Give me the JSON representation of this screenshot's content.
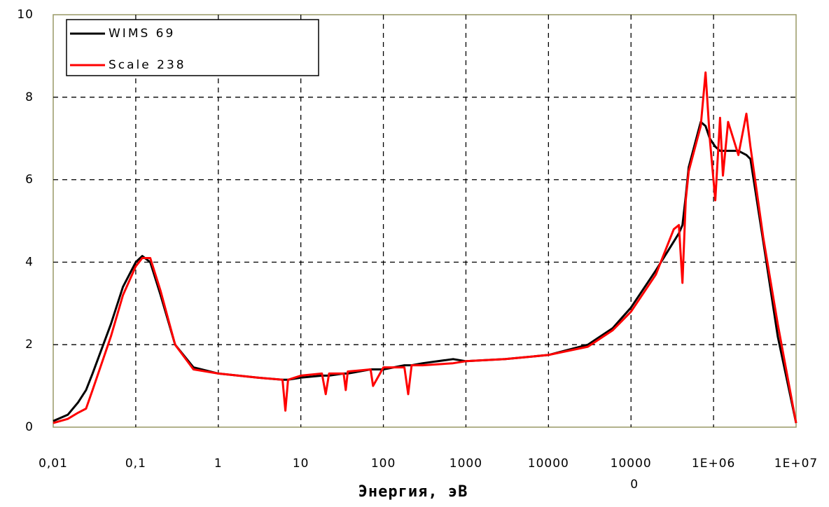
{
  "chart_data": {
    "type": "line",
    "xlabel": "Энергия, эВ",
    "xscale": "log",
    "grid": true,
    "legend": "upper left",
    "xlim": [
      0.01,
      10000000
    ],
    "ylim": [
      0,
      10
    ],
    "xticks": [
      {
        "value": 0.01,
        "label": "0,01"
      },
      {
        "value": 0.1,
        "label": "0,1"
      },
      1,
      10,
      100,
      1000,
      10000,
      {
        "value": 100000,
        "label": "10000\n0"
      },
      {
        "value": 1000000,
        "label": "1E+06"
      },
      {
        "value": 10000000,
        "label": "1E+07"
      }
    ],
    "yticks": [
      0,
      2,
      4,
      6,
      8,
      10
    ],
    "x": [
      0.01,
      0.015,
      0.02,
      0.025,
      0.03,
      0.05,
      0.07,
      0.1,
      0.12,
      0.15,
      0.2,
      0.3,
      0.5,
      1,
      3,
      6,
      6.5,
      7,
      10,
      18,
      20,
      22,
      33,
      35,
      37,
      70,
      75,
      100,
      180,
      200,
      220,
      300,
      700,
      1000,
      3000,
      10000,
      30000,
      60000,
      100000,
      200000,
      330000,
      380000,
      420000,
      460000,
      500000,
      700000,
      800000,
      900000,
      1050000,
      1200000,
      1300000,
      1500000,
      2000000,
      2500000,
      2800000,
      4000000,
      6000000,
      10000000
    ],
    "series": [
      {
        "name": "WIMS 69",
        "color": "#000000",
        "values": [
          0.15,
          0.3,
          0.6,
          0.9,
          1.3,
          2.5,
          3.4,
          4.0,
          4.15,
          4.0,
          3.2,
          2.0,
          1.45,
          1.3,
          1.2,
          1.15,
          1.15,
          1.15,
          1.2,
          1.25,
          1.25,
          1.25,
          1.3,
          1.3,
          1.3,
          1.4,
          1.4,
          1.4,
          1.5,
          1.5,
          1.5,
          1.55,
          1.65,
          1.6,
          1.65,
          1.75,
          2.0,
          2.4,
          2.9,
          3.8,
          4.5,
          4.7,
          4.9,
          5.6,
          6.3,
          7.4,
          7.3,
          7.0,
          6.8,
          6.7,
          6.7,
          6.7,
          6.7,
          6.6,
          6.5,
          4.5,
          2.2,
          0.1
        ]
      },
      {
        "name": "Scale 238",
        "color": "#ff0000",
        "values": [
          0.1,
          0.2,
          0.35,
          0.45,
          0.9,
          2.2,
          3.2,
          3.9,
          4.1,
          4.1,
          3.3,
          2.0,
          1.4,
          1.3,
          1.2,
          1.15,
          0.4,
          1.15,
          1.25,
          1.3,
          0.8,
          1.3,
          1.3,
          0.9,
          1.35,
          1.4,
          1.0,
          1.45,
          1.45,
          0.8,
          1.5,
          1.5,
          1.55,
          1.6,
          1.65,
          1.75,
          1.95,
          2.35,
          2.8,
          3.7,
          4.8,
          4.9,
          3.5,
          5.5,
          6.2,
          7.3,
          8.6,
          7.0,
          5.5,
          7.5,
          6.1,
          7.4,
          6.6,
          7.6,
          6.8,
          4.6,
          2.5,
          0.1
        ]
      }
    ]
  }
}
